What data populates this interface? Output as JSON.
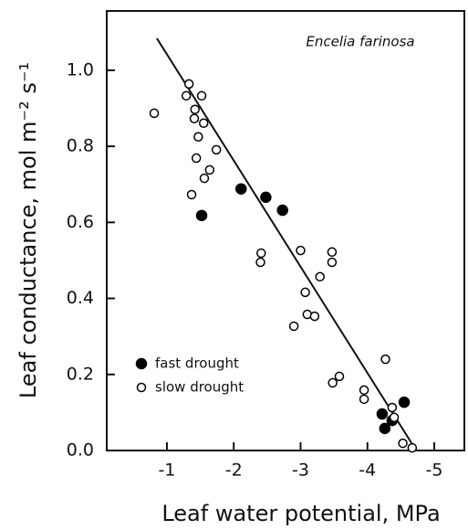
{
  "chart_data": {
    "type": "scatter",
    "annotation": "Encelia farinosa",
    "x_label": "Leaf water potential, MPa",
    "y_label": "Leaf conductance, mol m⁻² s⁻¹",
    "xlim": [
      -0.1,
      -5.45
    ],
    "ylim": [
      0,
      1.156
    ],
    "xticks": [
      -1,
      -2,
      -3,
      -4,
      -5
    ],
    "yticks": [
      {
        "value": 0,
        "label": "0.0"
      },
      0.2,
      0.4,
      0.6,
      0.8,
      {
        "value": 1,
        "label": "1.0"
      }
    ],
    "legend": "lower-left",
    "series": [
      {
        "name": "fast drought",
        "marker": "filled",
        "color": "#000000",
        "x": [
          -1.52,
          -2.11,
          -2.48,
          -2.73,
          -4.22,
          -4.26,
          -4.37,
          -4.55
        ],
        "values": [
          0.618,
          0.688,
          0.666,
          0.632,
          0.096,
          0.058,
          0.079,
          0.127
        ]
      },
      {
        "name": "slow drought",
        "marker": "open",
        "color": "#000000",
        "x": [
          -0.81,
          -1.33,
          -1.29,
          -1.52,
          -1.42,
          -1.41,
          -1.55,
          -1.47,
          -1.74,
          -1.44,
          -1.64,
          -1.56,
          -1.37,
          -2.41,
          -2.4,
          -3.0,
          -3.07,
          -3.1,
          -3.21,
          -2.9,
          -3.29,
          -3.47,
          -3.47,
          -3.58,
          -3.48,
          -3.95,
          -3.95,
          -4.27,
          -4.37,
          -4.4,
          -4.53,
          -4.67
        ],
        "values": [
          0.887,
          0.964,
          0.933,
          0.933,
          0.897,
          0.873,
          0.861,
          0.825,
          0.791,
          0.769,
          0.738,
          0.716,
          0.673,
          0.519,
          0.495,
          0.526,
          0.416,
          0.358,
          0.353,
          0.327,
          0.457,
          0.522,
          0.495,
          0.195,
          0.178,
          0.159,
          0.135,
          0.24,
          0.113,
          0.087,
          0.019,
          0.007
        ]
      }
    ],
    "fit_line": {
      "x": [
        -0.85,
        -4.73
      ],
      "values": [
        1.084,
        0
      ]
    }
  }
}
